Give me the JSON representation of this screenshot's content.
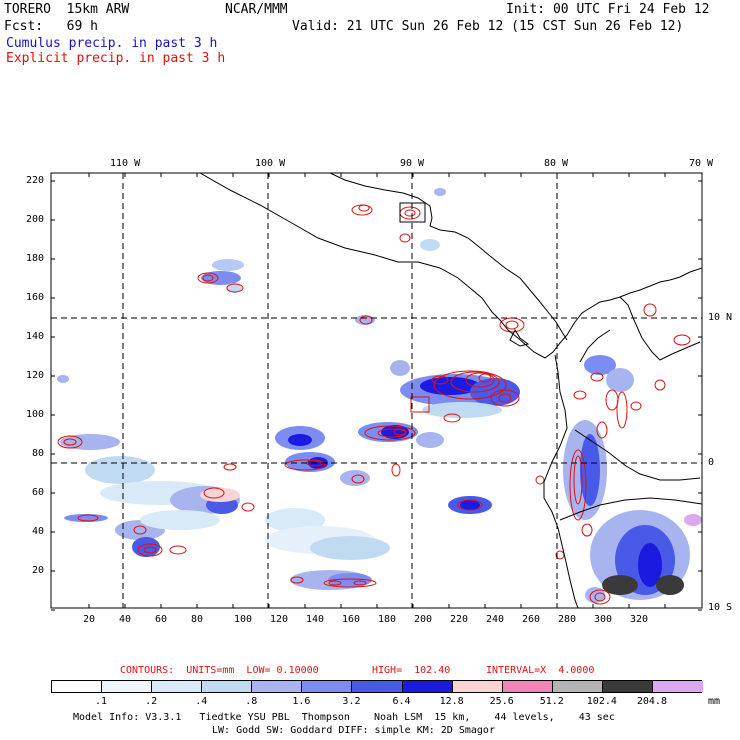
{
  "header": {
    "model": "TORERO  15km ARW",
    "org": "NCAR/MMM",
    "init": "Init: 00 UTC Fri 24 Feb 12",
    "fcst": "Fcst:   69 h",
    "valid": "Valid: 21 UTC Sun 26 Feb 12 (15 CST Sun 26 Feb 12)",
    "field1": "Cumulus precip. in past 3 h",
    "field2": "Explicit precip. in past 3 h"
  },
  "colors": {
    "field1": "#1414c8",
    "field2": "#e01010",
    "contour": "#e01010",
    "frame": "#000000"
  },
  "map": {
    "lon_labels": [
      "110 W",
      "100 W",
      "90 W",
      "80 W",
      "70 W"
    ],
    "lat_labels": [
      "10 N",
      "0",
      "10 S"
    ],
    "y_ticks": [
      "220",
      "200",
      "180",
      "160",
      "140",
      "120",
      "100",
      "80",
      "60",
      "40",
      "20"
    ],
    "x_ticks": [
      "20",
      "40",
      "60",
      "80",
      "100",
      "120",
      "140",
      "160",
      "180",
      "200",
      "220",
      "240",
      "260",
      "280",
      "300",
      "320"
    ]
  },
  "contour_info": {
    "contours": "CONTOURS:  UNITS=mm  LOW= 0.10000",
    "high": "HIGH=  102.40",
    "interval": "INTERVAL=X  4.0000"
  },
  "colorbar": {
    "unit": "mm",
    "labels": [
      ".1",
      ".2",
      ".4",
      ".8",
      "1.6",
      "3.2",
      "6.4",
      "12.8",
      "25.6",
      "51.2",
      "102.4",
      "204.8"
    ],
    "colors": [
      "#ffffff",
      "#eef6fc",
      "#d8eaf8",
      "#c0daf2",
      "#a8b4f0",
      "#7c8cf0",
      "#4a5ae8",
      "#1a1ae0",
      "#f8d4d4",
      "#f086b8",
      "#b4b4b4",
      "#3a3a3a",
      "#dca8f0"
    ]
  },
  "footer": {
    "line1": "Model Info: V3.3.1   Tiedtke YSU PBL  Thompson    Noah LSM  15 km,    44 levels,    43 sec",
    "line2": "LW: Godd SW: Goddard DIFF: simple KM: 2D Smagor"
  }
}
